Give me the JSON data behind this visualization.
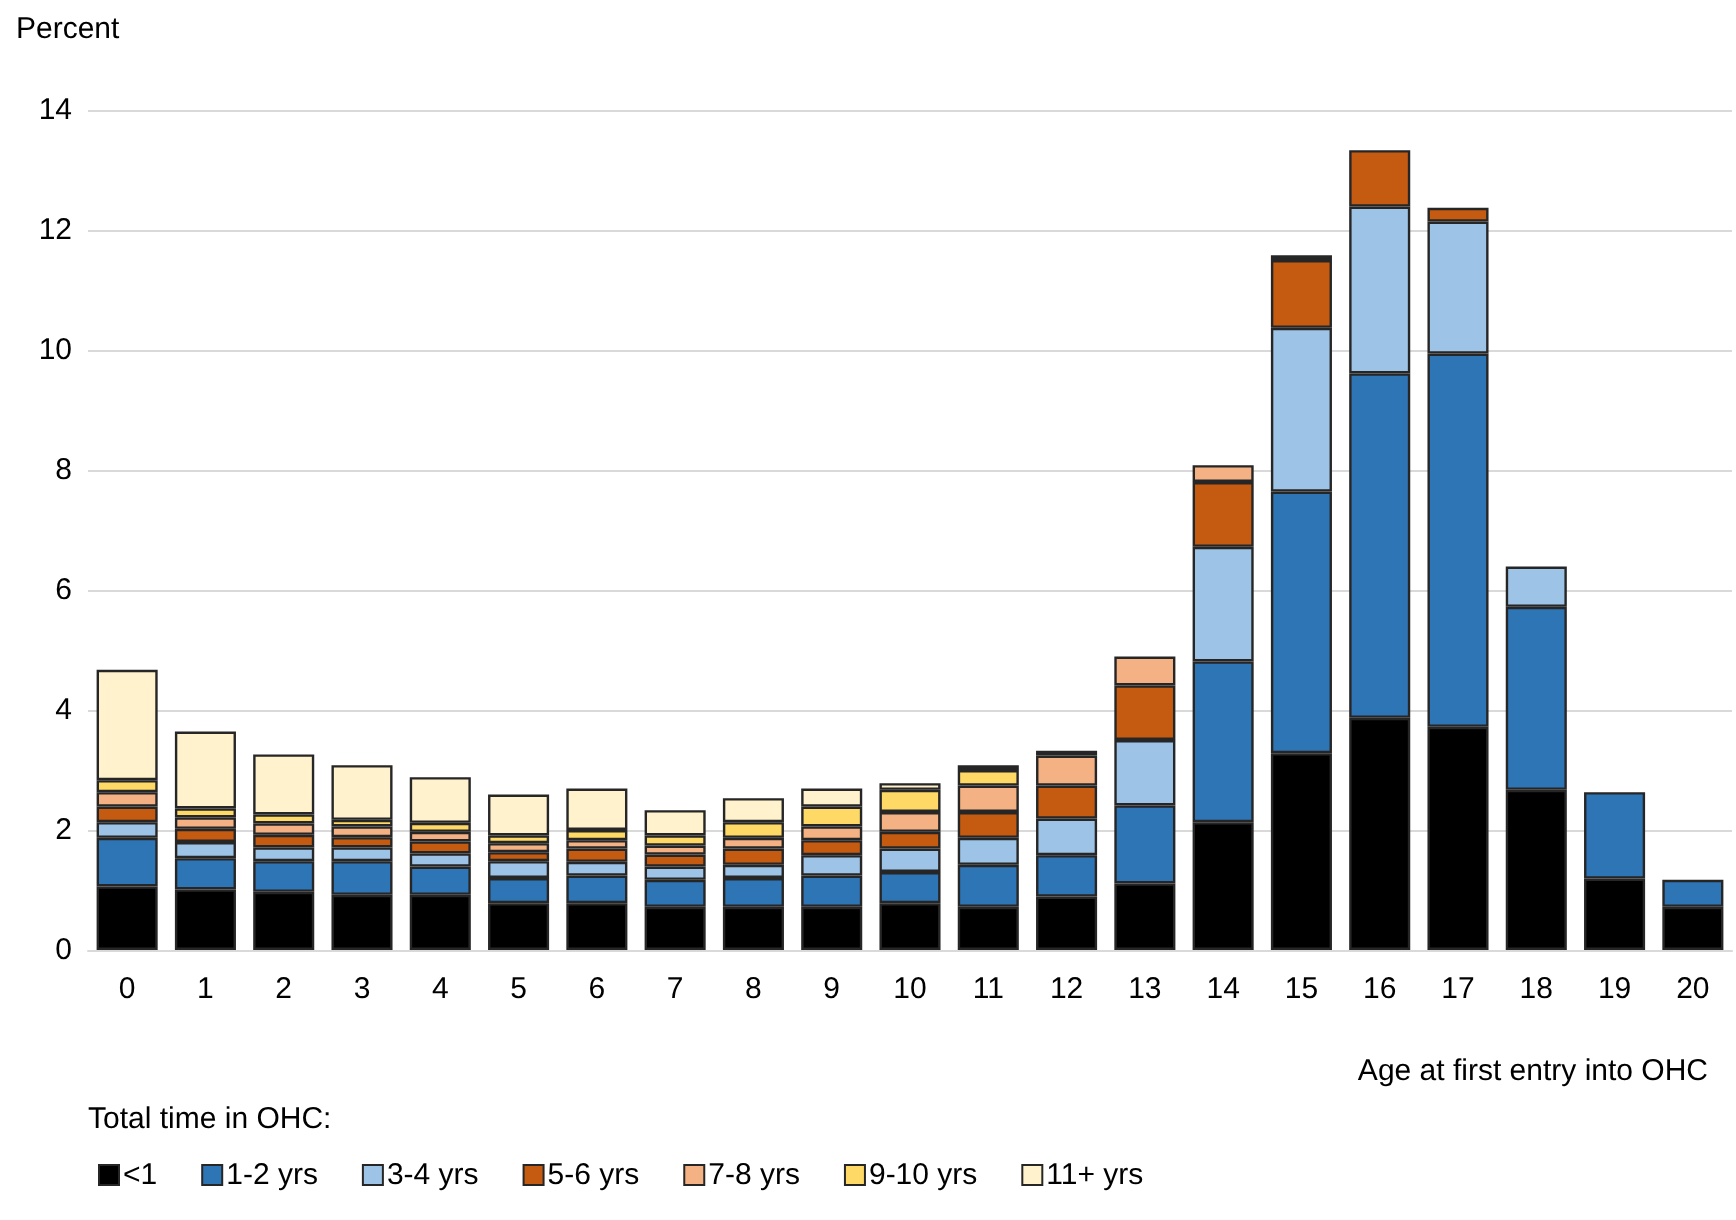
{
  "chart_data": {
    "type": "bar",
    "stacked": true,
    "ylabel": "Percent",
    "xlabel": "Age at first entry into OHC",
    "legend_title": "Total time in OHC:",
    "categories": [
      "0",
      "1",
      "2",
      "3",
      "4",
      "5",
      "6",
      "7",
      "8",
      "9",
      "10",
      "11",
      "12",
      "13",
      "14",
      "15",
      "16",
      "17",
      "18",
      "19",
      "20"
    ],
    "ylim": [
      0,
      14
    ],
    "yticks": [
      0,
      2,
      4,
      6,
      8,
      10,
      12,
      14
    ],
    "grid": "y",
    "legend": "bottom left",
    "series": [
      {
        "name": "<1",
        "color": "#000000",
        "values": [
          1.06,
          1.01,
          0.97,
          0.92,
          0.92,
          0.78,
          0.78,
          0.72,
          0.72,
          0.72,
          0.78,
          0.72,
          0.89,
          1.11,
          2.13,
          3.28,
          3.87,
          3.72,
          2.67,
          1.19,
          0.72
        ]
      },
      {
        "name": "1-2 yrs",
        "color": "#2e75b6",
        "values": [
          0.81,
          0.52,
          0.51,
          0.56,
          0.47,
          0.42,
          0.46,
          0.45,
          0.48,
          0.52,
          0.52,
          0.7,
          0.69,
          1.3,
          2.68,
          4.36,
          5.74,
          6.22,
          3.05,
          1.44,
          0.45
        ]
      },
      {
        "name": "3-4 yrs",
        "color": "#9dc3e6",
        "values": [
          0.26,
          0.27,
          0.23,
          0.23,
          0.22,
          0.28,
          0.23,
          0.22,
          0.22,
          0.34,
          0.39,
          0.45,
          0.61,
          1.09,
          1.91,
          2.73,
          2.78,
          2.2,
          0.67,
          null,
          null
        ]
      },
      {
        "name": "5-6 yrs",
        "color": "#c55a11",
        "values": [
          0.26,
          0.22,
          0.21,
          0.17,
          0.2,
          0.15,
          0.22,
          0.2,
          0.27,
          0.25,
          0.28,
          0.43,
          0.55,
          0.91,
          1.08,
          1.13,
          0.94,
          0.23,
          null,
          null,
          null
        ]
      },
      {
        "name": "7-8 yrs",
        "color": "#f4b183",
        "values": [
          0.24,
          0.19,
          0.19,
          0.18,
          0.16,
          0.15,
          0.14,
          0.15,
          0.18,
          0.23,
          0.33,
          0.44,
          0.5,
          0.48,
          0.28,
          0.08,
          null,
          null,
          null,
          null,
          null
        ]
      },
      {
        "name": "9-10 yrs",
        "color": "#ffd966",
        "values": [
          0.2,
          0.15,
          0.15,
          0.11,
          0.15,
          0.13,
          0.17,
          0.17,
          0.26,
          0.33,
          0.37,
          0.26,
          null,
          null,
          null,
          null,
          null,
          null,
          null,
          null,
          null
        ]
      },
      {
        "name": "11+ yrs",
        "color": "#fff2cc",
        "values": [
          1.84,
          1.28,
          1.0,
          0.91,
          0.76,
          0.68,
          0.69,
          0.42,
          0.4,
          0.3,
          0.11,
          0.08,
          0.08,
          null,
          null,
          null,
          null,
          null,
          null,
          null,
          null
        ]
      }
    ]
  }
}
